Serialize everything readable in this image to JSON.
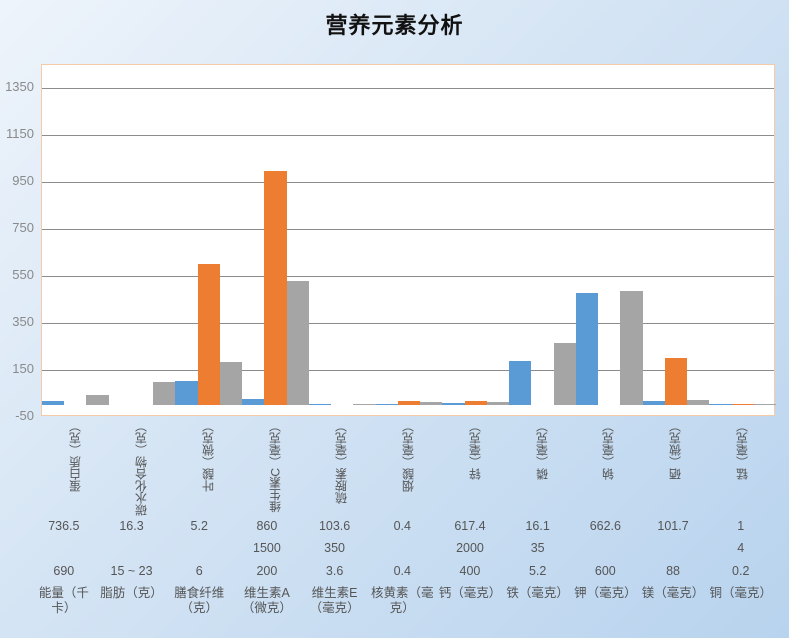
{
  "title": "营养元素分析",
  "colors": {
    "series1": "#5b9bd5",
    "series2": "#ed7d31",
    "series3": "#a5a5a5",
    "grid": "#8c8c8c",
    "plot_border": "#f5cba7"
  },
  "y_ticks": [
    "1350",
    "1150",
    "950",
    "750",
    "550",
    "350",
    "150",
    "-50"
  ],
  "x_categories": [
    "蛋白质（克）",
    "碳水化合物（克）",
    "叶酸（微克）",
    "维生素C（毫克）",
    "硫胺素（毫克）",
    "烟酸（毫克）",
    "锌（毫克）",
    "磷（毫克）",
    "钠（毫克）",
    "硒（微克）",
    "锰（毫克）"
  ],
  "table": {
    "row1": [
      "736.5",
      "16.3",
      "5.2",
      "860",
      "103.6",
      "0.4",
      "617.4",
      "16.1",
      "662.6",
      "101.7",
      "1"
    ],
    "row2": [
      "",
      "",
      "",
      "1500",
      "350",
      "",
      "2000",
      "35",
      "",
      "",
      "4"
    ],
    "row3": [
      "690",
      "15 ~ 23",
      "6",
      "200",
      "3.6",
      "0.4",
      "400",
      "5.2",
      "600",
      "88",
      "0.2"
    ],
    "labels": [
      "能量（千卡）",
      "脂肪（克）",
      "膳食纤维（克）",
      "维生素A（微克）",
      "维生素E（毫克）",
      "核黄素（毫克）",
      "钙（毫克）",
      "铁（毫克）",
      "钾（毫克）",
      "镁（毫克）",
      "铜（毫克）"
    ]
  },
  "chart_data": {
    "type": "bar",
    "title": "营养元素分析",
    "xlabel": "",
    "ylabel": "",
    "ylim": [
      -50,
      1450
    ],
    "yticks": [
      -50,
      150,
      350,
      550,
      750,
      950,
      1150,
      1350
    ],
    "grid": true,
    "legend": "none",
    "categories": [
      "蛋白质（克）",
      "碳水化合物（克）",
      "叶酸（微克）",
      "维生素C（毫克）",
      "硫胺素（毫克）",
      "烟酸（毫克）",
      "锌（毫克）",
      "磷（毫克）",
      "钠（毫克）",
      "硒（微克）",
      "锰（毫克）"
    ],
    "series": [
      {
        "name": "Series 1",
        "color": "#5b9bd5",
        "values": [
          17,
          0,
          103,
          27,
          4,
          3,
          8,
          190,
          480,
          17,
          2
        ]
      },
      {
        "name": "Series 2",
        "color": "#ed7d31",
        "values": [
          0,
          0,
          600,
          1000,
          0,
          17,
          17,
          0,
          0,
          200,
          2
        ]
      },
      {
        "name": "Series 3",
        "color": "#a5a5a5",
        "values": [
          45,
          98,
          185,
          530,
          3,
          12,
          12,
          265,
          487,
          22,
          7
        ]
      }
    ],
    "data_table": {
      "row1": [
        "736.5",
        "16.3",
        "5.2",
        "860",
        "103.6",
        "0.4",
        "617.4",
        "16.1",
        "662.6",
        "101.7",
        "1"
      ],
      "row2": [
        "",
        "",
        "",
        "1500",
        "350",
        "",
        "2000",
        "35",
        "",
        "",
        "4"
      ],
      "row3": [
        "690",
        "15 ~ 23",
        "6",
        "200",
        "3.6",
        "0.4",
        "400",
        "5.2",
        "600",
        "88",
        "0.2"
      ],
      "row_labels": [
        "能量（千卡）",
        "脂肪（克）",
        "膳食纤维（克）",
        "维生素A（微克）",
        "维生素E（毫克）",
        "核黄素（毫克）",
        "钙（毫克）",
        "铁（毫克）",
        "钾（毫克）",
        "镁（毫克）",
        "铜（毫克）"
      ]
    }
  }
}
